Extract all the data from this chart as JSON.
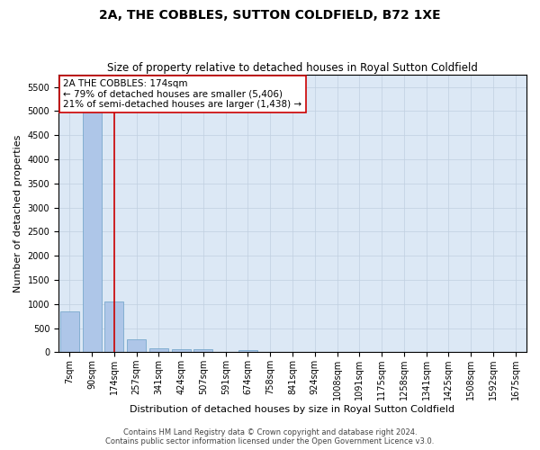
{
  "title": "2A, THE COBBLES, SUTTON COLDFIELD, B72 1XE",
  "subtitle": "Size of property relative to detached houses in Royal Sutton Coldfield",
  "xlabel": "Distribution of detached houses by size in Royal Sutton Coldfield",
  "ylabel": "Number of detached properties",
  "footer_line1": "Contains HM Land Registry data © Crown copyright and database right 2024.",
  "footer_line2": "Contains public sector information licensed under the Open Government Licence v3.0.",
  "categories": [
    "7sqm",
    "90sqm",
    "174sqm",
    "257sqm",
    "341sqm",
    "424sqm",
    "507sqm",
    "591sqm",
    "674sqm",
    "758sqm",
    "841sqm",
    "924sqm",
    "1008sqm",
    "1091sqm",
    "1175sqm",
    "1258sqm",
    "1341sqm",
    "1425sqm",
    "1508sqm",
    "1592sqm",
    "1675sqm"
  ],
  "values": [
    850,
    5500,
    1050,
    270,
    80,
    70,
    65,
    0,
    50,
    0,
    0,
    0,
    0,
    0,
    0,
    0,
    0,
    0,
    0,
    0,
    0
  ],
  "bar_color": "#aec6e8",
  "bar_edge_color": "#6aa0c7",
  "highlight_index": 2,
  "highlight_line_color": "#cc0000",
  "annotation_line1": "2A THE COBBLES: 174sqm",
  "annotation_line2": "← 79% of detached houses are smaller (5,406)",
  "annotation_line3": "21% of semi-detached houses are larger (1,438) →",
  "annotation_box_color": "#ffffff",
  "annotation_box_edge": "#cc0000",
  "ylim": [
    0,
    5750
  ],
  "yticks": [
    0,
    500,
    1000,
    1500,
    2000,
    2500,
    3000,
    3500,
    4000,
    4500,
    5000,
    5500
  ],
  "ax_facecolor": "#dce8f5",
  "background_color": "#ffffff",
  "grid_color": "#c0cfe0",
  "title_fontsize": 10,
  "subtitle_fontsize": 8.5,
  "ylabel_fontsize": 8,
  "xlabel_fontsize": 8,
  "tick_fontsize": 7,
  "annotation_fontsize": 7.5,
  "footer_fontsize": 6
}
